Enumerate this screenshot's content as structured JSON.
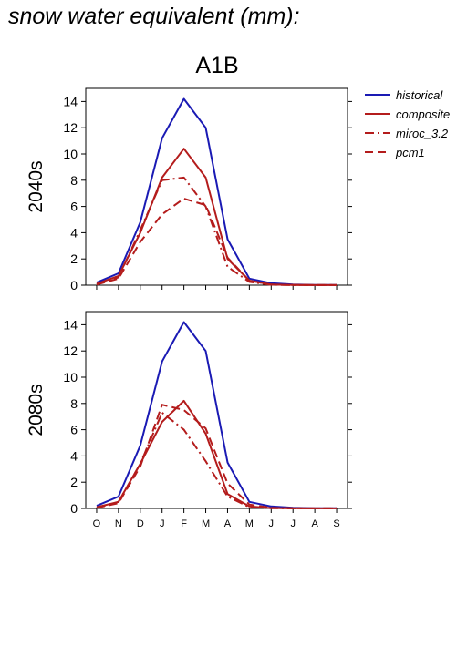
{
  "title": "snow water equivalent (mm):",
  "chart_data": {
    "type": "line",
    "title": "A1B",
    "categories": [
      "O",
      "N",
      "D",
      "J",
      "F",
      "M",
      "A",
      "M",
      "J",
      "J",
      "A",
      "S"
    ],
    "ylim": [
      0,
      15
    ],
    "yticks": [
      0,
      2,
      4,
      6,
      8,
      10,
      12,
      14
    ],
    "grid": false,
    "legend": {
      "placement": "top-right, outside plot",
      "entries": [
        "historical",
        "composite",
        "miroc_3.2",
        "pcm1"
      ]
    },
    "series_styles": {
      "historical": {
        "color": "#1a1ab4",
        "dash": "solid"
      },
      "composite": {
        "color": "#b41c1c",
        "dash": "solid"
      },
      "miroc_3.2": {
        "color": "#b41c1c",
        "dash": "dashdot"
      },
      "pcm1": {
        "color": "#b41c1c",
        "dash": "dash"
      }
    },
    "panels": [
      {
        "row_label": "2040s",
        "series": [
          {
            "name": "historical",
            "values": [
              0.2,
              0.9,
              4.8,
              11.2,
              14.2,
              12.0,
              3.5,
              0.5,
              0.15,
              0.05,
              0.02,
              0.02
            ]
          },
          {
            "name": "composite",
            "values": [
              0.1,
              0.7,
              4.0,
              8.2,
              10.4,
              8.2,
              2.0,
              0.35,
              0.05,
              0.02,
              0.01,
              0.01
            ]
          },
          {
            "name": "miroc_3.2",
            "values": [
              0.05,
              0.6,
              4.2,
              8.0,
              8.2,
              6.0,
              1.4,
              0.25,
              0.03,
              0.01,
              0.01,
              0.01
            ]
          },
          {
            "name": "pcm1",
            "values": [
              0.05,
              0.5,
              3.3,
              5.4,
              6.6,
              6.1,
              2.1,
              0.35,
              0.05,
              0.02,
              0.01,
              0.01
            ]
          }
        ]
      },
      {
        "row_label": "2080s",
        "series": [
          {
            "name": "historical",
            "values": [
              0.2,
              0.9,
              4.8,
              11.2,
              14.2,
              12.0,
              3.5,
              0.5,
              0.15,
              0.05,
              0.02,
              0.02
            ]
          },
          {
            "name": "composite",
            "values": [
              0.1,
              0.5,
              3.4,
              6.6,
              8.2,
              5.7,
              1.1,
              0.15,
              0.03,
              0.01,
              0.01,
              0.01
            ]
          },
          {
            "name": "miroc_3.2",
            "values": [
              0.05,
              0.5,
              3.4,
              7.3,
              6.0,
              3.6,
              0.9,
              0.1,
              0.02,
              0.01,
              0.01,
              0.01
            ]
          },
          {
            "name": "pcm1",
            "values": [
              0.05,
              0.4,
              3.2,
              7.9,
              7.5,
              6.1,
              1.9,
              0.3,
              0.05,
              0.02,
              0.01,
              0.01
            ]
          }
        ]
      }
    ]
  }
}
